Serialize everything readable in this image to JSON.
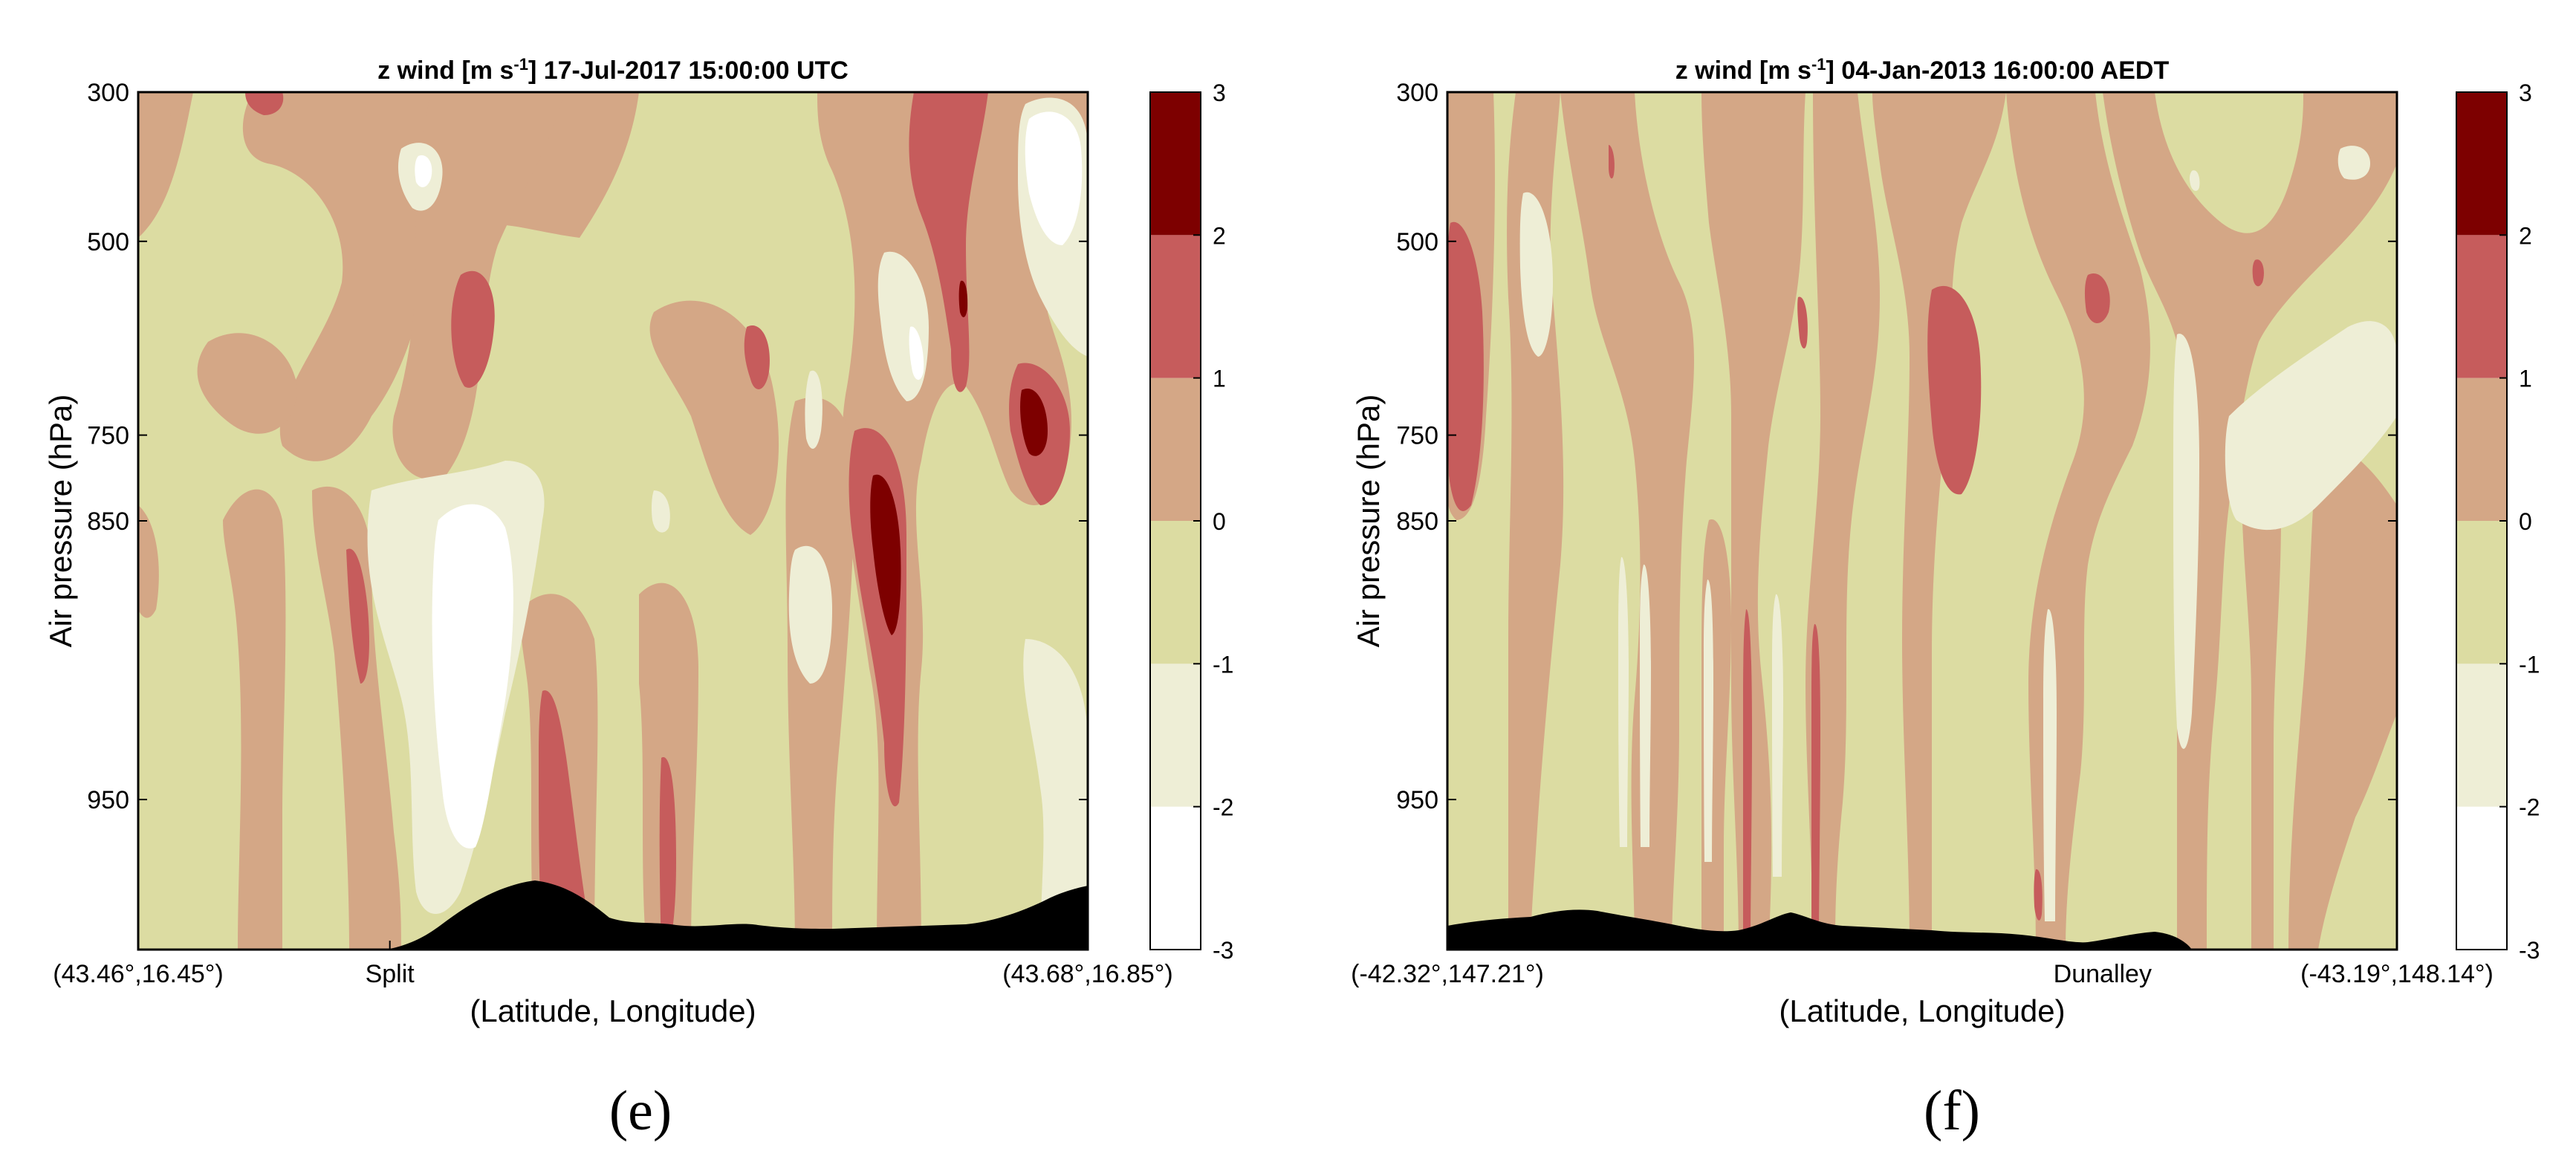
{
  "colors": {
    "white": "#ffffff",
    "very_light": "#eeeed6",
    "light_olive": "#dcdca2",
    "tan": "#d4a786",
    "red": "#c65c5c",
    "dark_red": "#7d0000",
    "terrain": "#000000"
  },
  "chart_data": [
    {
      "type": "heatmap",
      "panel_label": "(e)",
      "title": "z wind [m s⁻¹] 17-Jul-2017 15:00:00 UTC",
      "xlabel": "(Latitude, Longitude)",
      "ylabel": "Air pressure (hPa)",
      "x_ticks": [
        "(43.46°,16.45°)",
        "Split",
        "(43.68°,16.85°)"
      ],
      "y_ticks": [
        300,
        500,
        750,
        850,
        950
      ],
      "ylim": [
        300,
        1000
      ],
      "y_scale": "reversed",
      "colorbar": {
        "ticks": [
          3,
          2,
          1,
          0,
          -1,
          -2,
          -3
        ],
        "levels": [
          -3,
          -2,
          -1,
          0,
          1,
          2,
          3
        ]
      }
    },
    {
      "type": "heatmap",
      "panel_label": "(f)",
      "title": "z wind [m s⁻¹] 04-Jan-2013 16:00:00 AEDT",
      "xlabel": "(Latitude, Longitude)",
      "ylabel": "Air pressure (hPa)",
      "x_ticks": [
        "(-42.32°,147.21°)",
        "Dunalley",
        "(-43.19°,148.14°)"
      ],
      "y_ticks": [
        300,
        500,
        750,
        850,
        950
      ],
      "ylim": [
        300,
        1000
      ],
      "y_scale": "reversed",
      "colorbar": {
        "ticks": [
          3,
          2,
          1,
          0,
          -1,
          -2,
          -3
        ],
        "levels": [
          -3,
          -2,
          -1,
          0,
          1,
          2,
          3
        ]
      }
    }
  ]
}
